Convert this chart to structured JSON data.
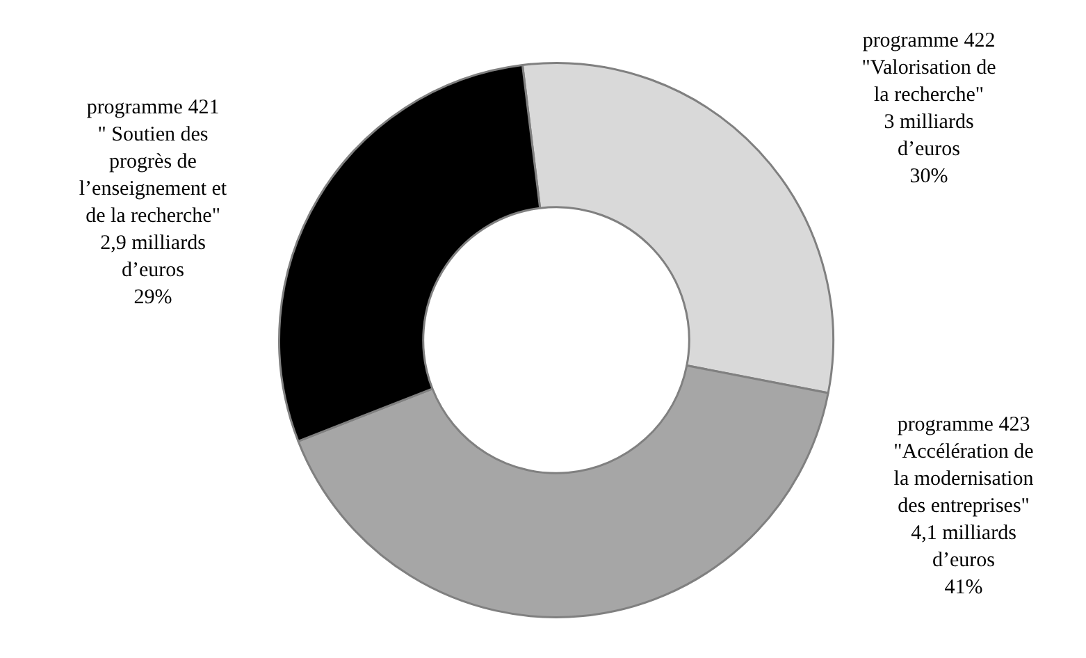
{
  "chart_data": {
    "type": "donut",
    "categories": [
      "programme 422\n\"Valorisation de\nla recherche\"",
      "programme 423\n\"Accélération de\nla modernisation\ndes entreprises\"",
      "programme 421\n\" Soutien des\nprogrès de\nl’enseignement et\nde la recherche\""
    ],
    "values": [
      30,
      41,
      29
    ],
    "value_labels": [
      "3 milliards\nd’euros\n30%",
      "4,1 milliards\nd’euros\n41%",
      "2,9 milliards\nd’euros\n29%"
    ],
    "colors": [
      "#d9d9d9",
      "#a6a6a6",
      "#000000"
    ],
    "legend": false
  }
}
